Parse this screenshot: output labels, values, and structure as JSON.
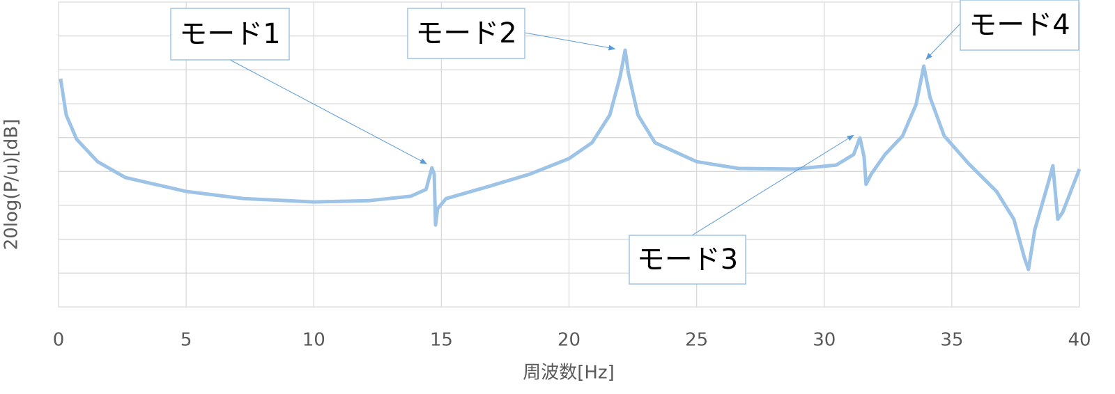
{
  "chart_data": {
    "type": "line",
    "x_label": "周波数[Hz]",
    "y_label": "20log(P/u)[dB]",
    "xlim": [
      0,
      40
    ],
    "xticks": [
      0,
      5,
      10,
      15,
      20,
      25,
      30,
      35,
      40
    ],
    "ylim": [
      0,
      9
    ],
    "yticks": [
      0,
      1,
      2,
      3,
      4,
      5,
      6,
      7,
      8,
      9
    ],
    "ytick_labels": false,
    "grid": true,
    "color": "#9dc3e6",
    "x": [
      0.08,
      0.3,
      0.71,
      1.53,
      2.62,
      5,
      7.26,
      10,
      12.18,
      13.8,
      14.4,
      14.63,
      14.72,
      14.77,
      14.85,
      15.18,
      16.82,
      18.46,
      20,
      20.9,
      21.6,
      22,
      22.2,
      22.33,
      22.7,
      23.37,
      25,
      26.65,
      28.83,
      30.47,
      31.15,
      31.4,
      31.56,
      31.64,
      31.84,
      32.38,
      33.07,
      33.6,
      33.9,
      34.15,
      34.7,
      35.66,
      36.75,
      37.43,
      37.84,
      38,
      38.25,
      38.8,
      38.96,
      39.15,
      39.34,
      40
    ],
    "values": [
      6.74,
      5.67,
      4.95,
      4.29,
      3.82,
      3.41,
      3.2,
      3.1,
      3.14,
      3.27,
      3.47,
      4.11,
      3.92,
      2.42,
      2.9,
      3.2,
      3.55,
      3.92,
      4.38,
      4.85,
      5.67,
      6.8,
      7.58,
      6.9,
      5.67,
      4.85,
      4.29,
      4.09,
      4.07,
      4.19,
      4.5,
      4.99,
      4.44,
      3.62,
      3.92,
      4.5,
      5.05,
      5.98,
      7.11,
      6.18,
      5.05,
      4.23,
      3.41,
      2.59,
      1.46,
      1.11,
      2.28,
      3.72,
      4.17,
      2.59,
      2.79,
      4.07
    ],
    "annotations": [
      {
        "text": "モード1",
        "x": 14.42,
        "y": 4.23
      },
      {
        "text": "モード2",
        "x": 21.8,
        "y": 7.62
      },
      {
        "text": "モード3",
        "x": 31.15,
        "y": 5.07
      },
      {
        "text": "モード4",
        "x": 33.99,
        "y": 7.31
      }
    ]
  }
}
